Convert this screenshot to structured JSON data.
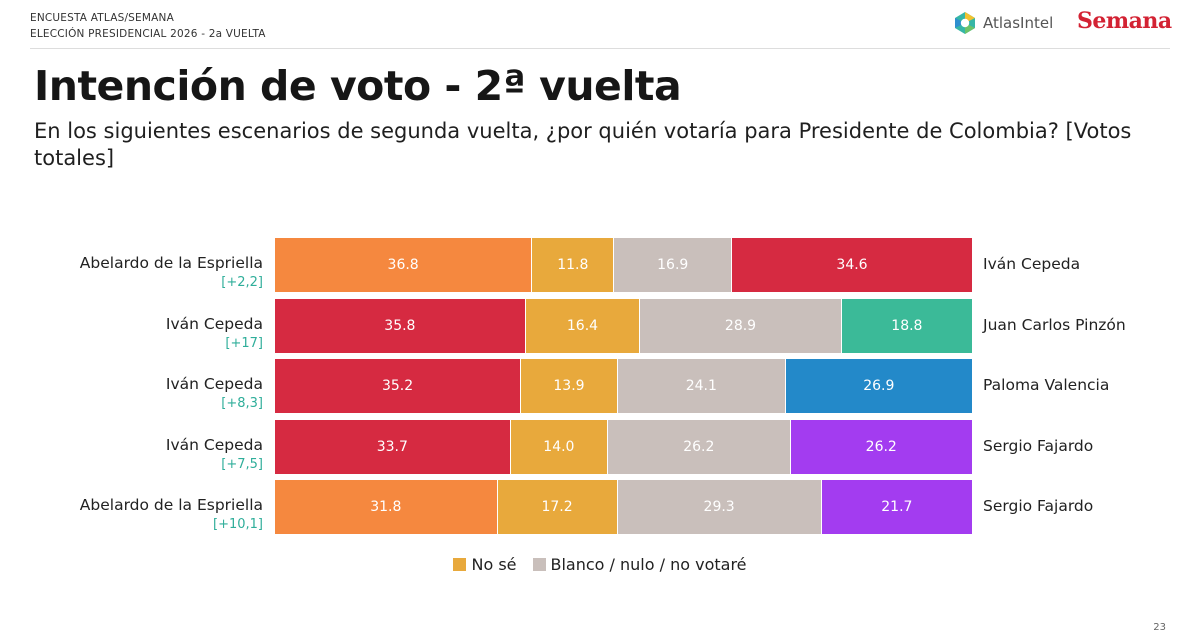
{
  "header": {
    "survey_line": "ENCUESTA ATLAS/SEMANA",
    "election_line": "ELECCIÓN PRESIDENCIAL 2026 - 2a VUELTA"
  },
  "logos": {
    "atlas": "AtlasIntel",
    "semana": "Semana"
  },
  "title": "Intención de voto - 2ª vuelta",
  "question": "En los siguientes escenarios de segunda vuelta, ¿por quién votaría para Presidente de Colombia? [Votos totales]",
  "page_number": "23",
  "colors": {
    "abelardo": "#f5883f",
    "cepeda": "#d62a41",
    "no_se": "#e8a93c",
    "blanco": "#c9bfbb",
    "pinzon": "#3bba98",
    "valencia": "#2389c9",
    "fajardo": "#a33cf0",
    "diff_text": "#2fae9a"
  },
  "chart_data": {
    "type": "bar",
    "orientation": "horizontal-stacked-100",
    "segment_order": [
      "left_candidate",
      "No sé",
      "Blanco / nulo / no votaré",
      "right_candidate"
    ],
    "legend": [
      {
        "label": "No sé",
        "color": "#e8a93c"
      },
      {
        "label": "Blanco / nulo / no votaré",
        "color": "#c9bfbb"
      }
    ],
    "scenarios": [
      {
        "left": "Abelardo de la Espriella",
        "diff": "[+2,2]",
        "right": "Iván Cepeda",
        "values": [
          36.8,
          11.8,
          16.9,
          34.6
        ],
        "colors": [
          "#f5883f",
          "#e8a93c",
          "#c9bfbb",
          "#d62a41"
        ]
      },
      {
        "left": "Iván Cepeda",
        "diff": "[+17]",
        "right": "Juan Carlos Pinzón",
        "values": [
          35.8,
          16.4,
          28.9,
          18.8
        ],
        "colors": [
          "#d62a41",
          "#e8a93c",
          "#c9bfbb",
          "#3bba98"
        ]
      },
      {
        "left": "Iván Cepeda",
        "diff": "[+8,3]",
        "right": "Paloma Valencia",
        "values": [
          35.2,
          13.9,
          24.1,
          26.9
        ],
        "colors": [
          "#d62a41",
          "#e8a93c",
          "#c9bfbb",
          "#2389c9"
        ]
      },
      {
        "left": "Iván Cepeda",
        "diff": "[+7,5]",
        "right": "Sergio Fajardo",
        "values": [
          33.7,
          14.0,
          26.2,
          26.2
        ],
        "colors": [
          "#d62a41",
          "#e8a93c",
          "#c9bfbb",
          "#a33cf0"
        ]
      },
      {
        "left": "Abelardo de la Espriella",
        "diff": "[+10,1]",
        "right": "Sergio Fajardo",
        "values": [
          31.8,
          17.2,
          29.3,
          21.7
        ],
        "colors": [
          "#f5883f",
          "#e8a93c",
          "#c9bfbb",
          "#a33cf0"
        ]
      }
    ]
  }
}
